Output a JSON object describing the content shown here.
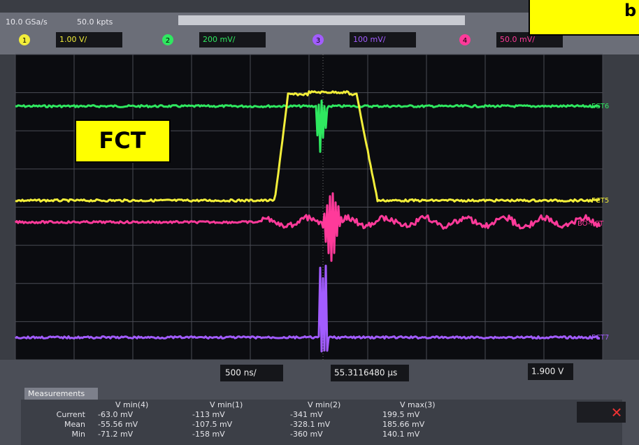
{
  "header": {
    "sample_rate": "10.0 GSa/s",
    "memory": "50.0 kpts"
  },
  "channels": [
    {
      "number": "1",
      "scale": "1.00 V/"
    },
    {
      "number": "2",
      "scale": "200 mV/"
    },
    {
      "number": "3",
      "scale": "100 mV/"
    },
    {
      "number": "4",
      "scale": "50.0 mV/"
    }
  ],
  "overlay_label": "b",
  "fct_label": "FCT",
  "trace_labels": [
    "FCT6",
    "FCT5",
    "BO-FCT",
    "FCT7"
  ],
  "timebase": "500 ns/",
  "delay": "55.3116480 µs",
  "trigger_level": "1.900 V",
  "measurements": {
    "title": "Measurements",
    "columns": [
      "V min(4)",
      "V min(1)",
      "V min(2)",
      "V max(3)"
    ],
    "rows": [
      {
        "label": "Current",
        "values": [
          "-63.0 mV",
          "-113 mV",
          "-341 mV",
          "199.5 mV"
        ]
      },
      {
        "label": "Mean",
        "values": [
          "-55.56 mV",
          "-107.5 mV",
          "-328.1 mV",
          "185.66 mV"
        ]
      },
      {
        "label": "Min",
        "values": [
          "-71.2 mV",
          "-158 mV",
          "-360 mV",
          "140.1 mV"
        ]
      }
    ]
  }
}
